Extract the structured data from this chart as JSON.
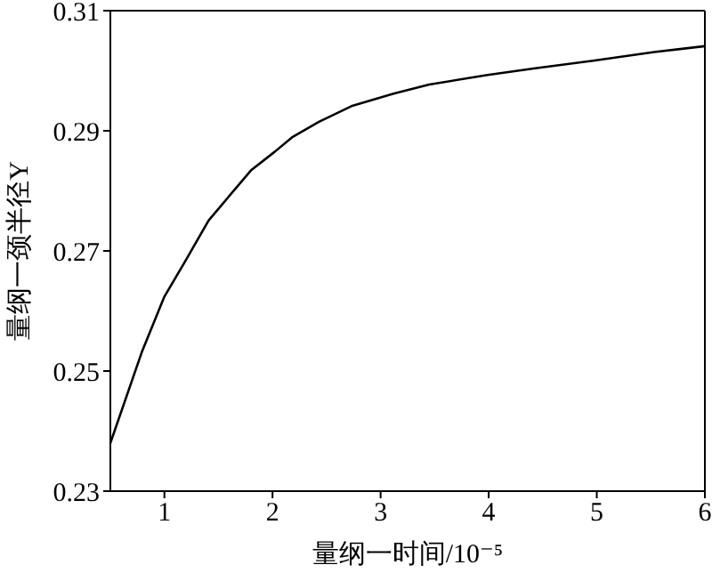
{
  "chart_data": {
    "type": "line",
    "xlabel": "量纲一时间/10⁻⁵",
    "ylabel": "量纲一颈半径Y",
    "x": [
      0.5,
      0.79,
      1.0,
      1.19,
      1.41,
      1.8,
      2.02,
      2.18,
      2.43,
      2.73,
      3.12,
      3.45,
      3.99,
      4.43,
      4.98,
      5.53,
      6.0
    ],
    "series": [
      {
        "color": "#000000",
        "values": [
          0.238,
          0.2531,
          0.2624,
          0.2682,
          0.2751,
          0.2834,
          0.2865,
          0.2889,
          0.2915,
          0.2941,
          0.2962,
          0.2977,
          0.2993,
          0.3004,
          0.3017,
          0.3031,
          0.3041
        ]
      }
    ],
    "xlim": [
      0.5,
      6
    ],
    "xticks": [
      1,
      2,
      3,
      4,
      5,
      6
    ],
    "ylim": [
      0.23,
      0.31
    ],
    "yticks": [
      0.23,
      0.25,
      0.27,
      0.29,
      0.31
    ],
    "grid": false,
    "legend": false,
    "marker": "none",
    "line_style": "solid"
  }
}
